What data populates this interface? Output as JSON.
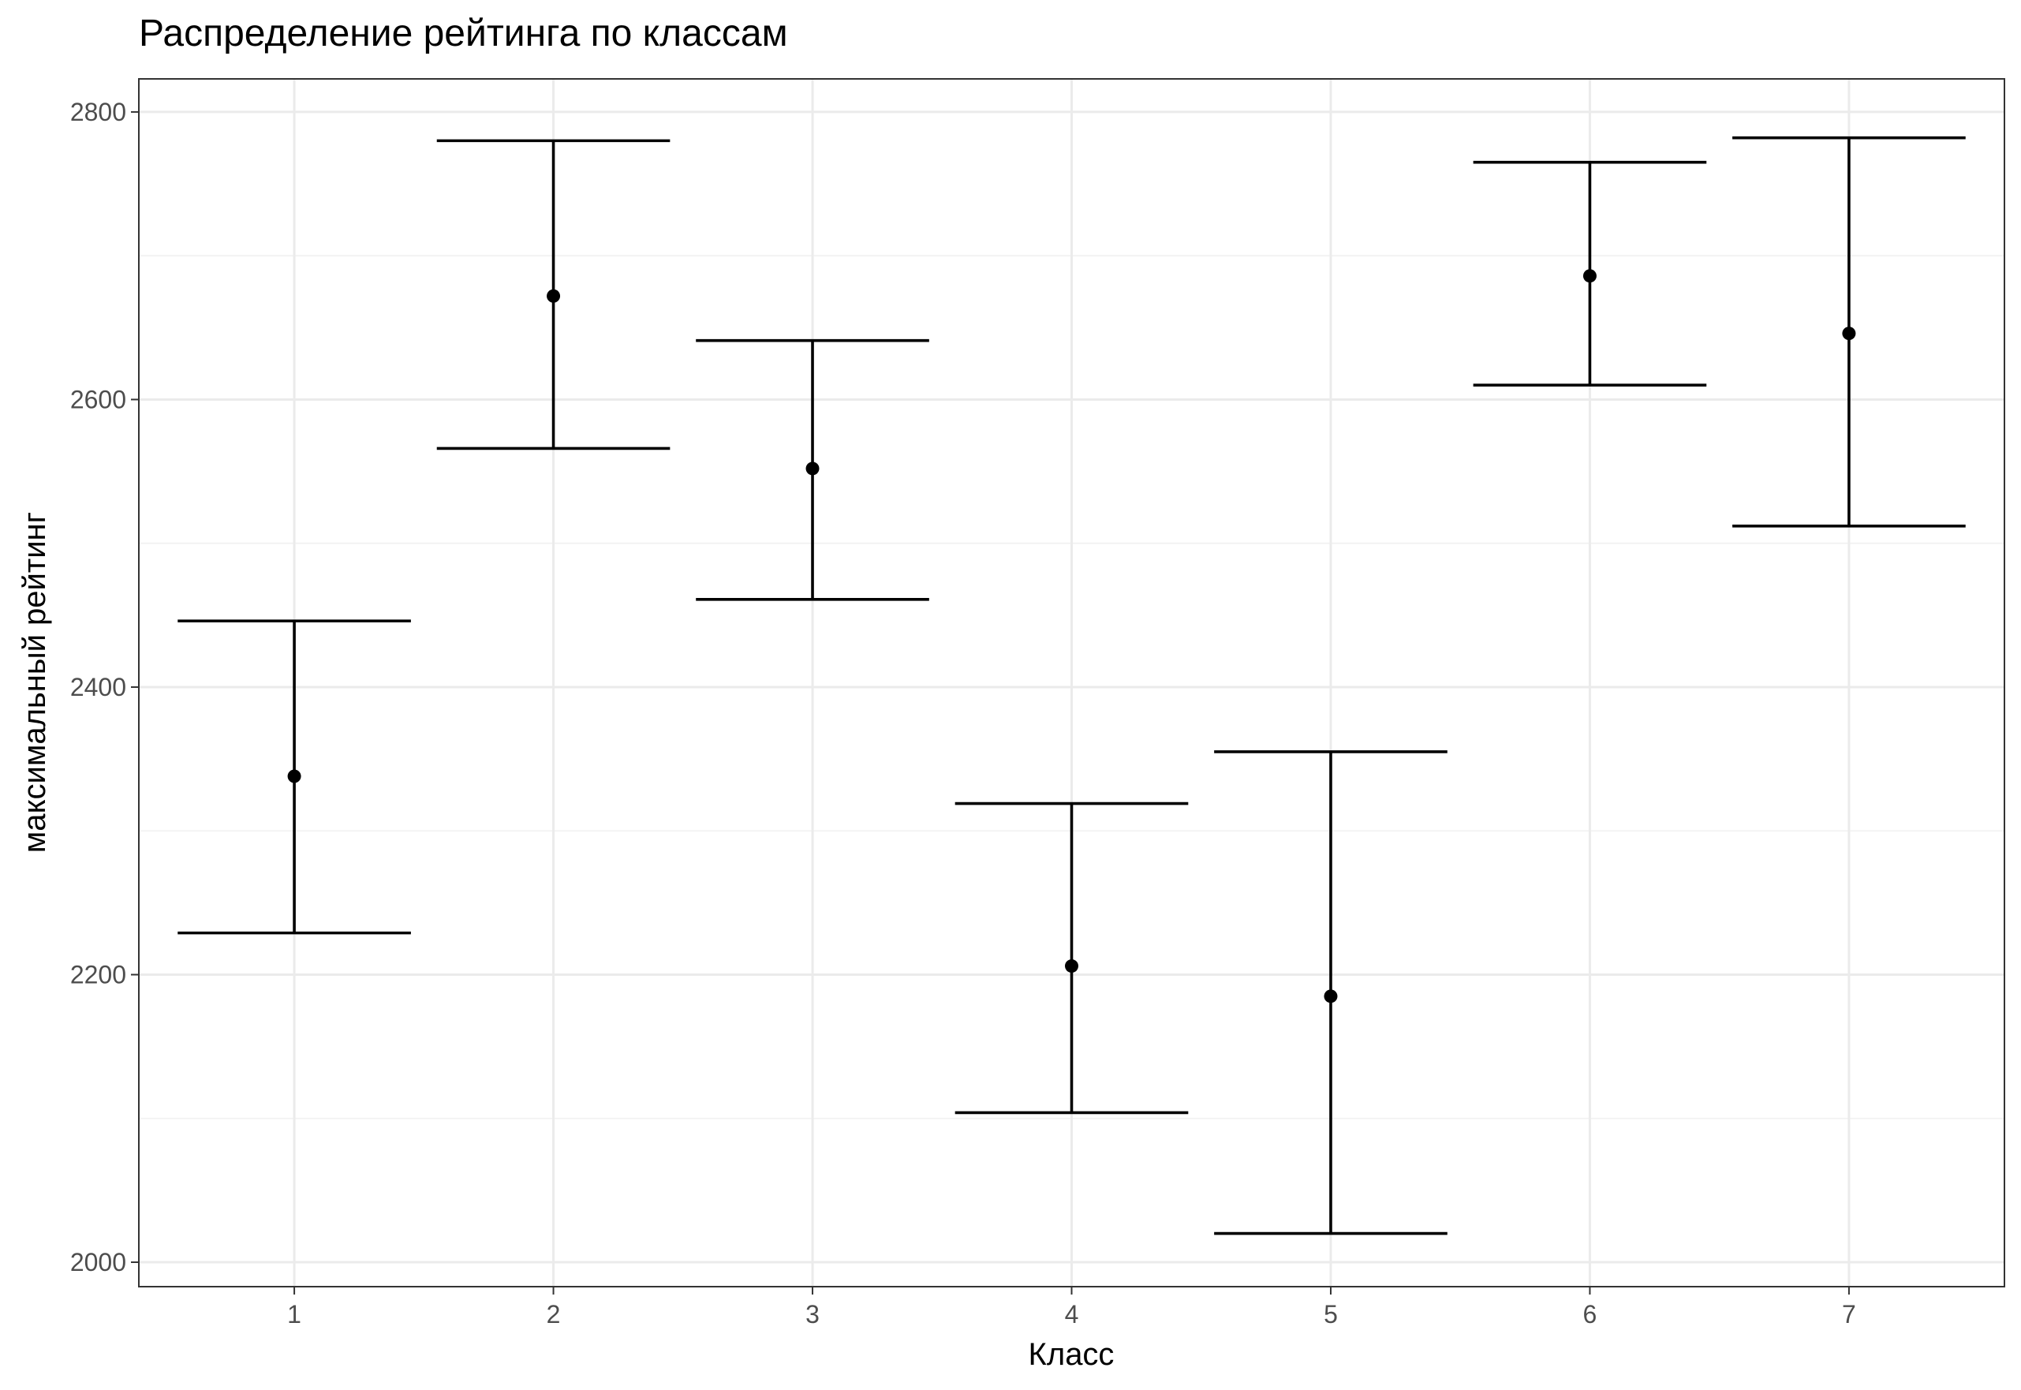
{
  "chart_data": {
    "type": "errorbar",
    "title": "Распределение рейтинга по классам",
    "xlabel": "Класс",
    "ylabel": "максимальный рейтинг",
    "categories": [
      "1",
      "2",
      "3",
      "4",
      "5",
      "6",
      "7"
    ],
    "values": [
      2338,
      2672,
      2552,
      2206,
      2185,
      2686,
      2646
    ],
    "lower": [
      2229,
      2566,
      2461,
      2104,
      2020,
      2610,
      2512
    ],
    "upper": [
      2446,
      2780,
      2641,
      2319,
      2355,
      2765,
      2782
    ],
    "ylim": [
      1983,
      2823
    ],
    "yticks": [
      2000,
      2200,
      2400,
      2600,
      2800
    ],
    "yminor": [
      2100,
      2300,
      2500,
      2700
    ],
    "grid": true,
    "legend": "none",
    "colors": {
      "marks": "#000000",
      "grid": "#ebebeb",
      "border": "#333333"
    }
  }
}
